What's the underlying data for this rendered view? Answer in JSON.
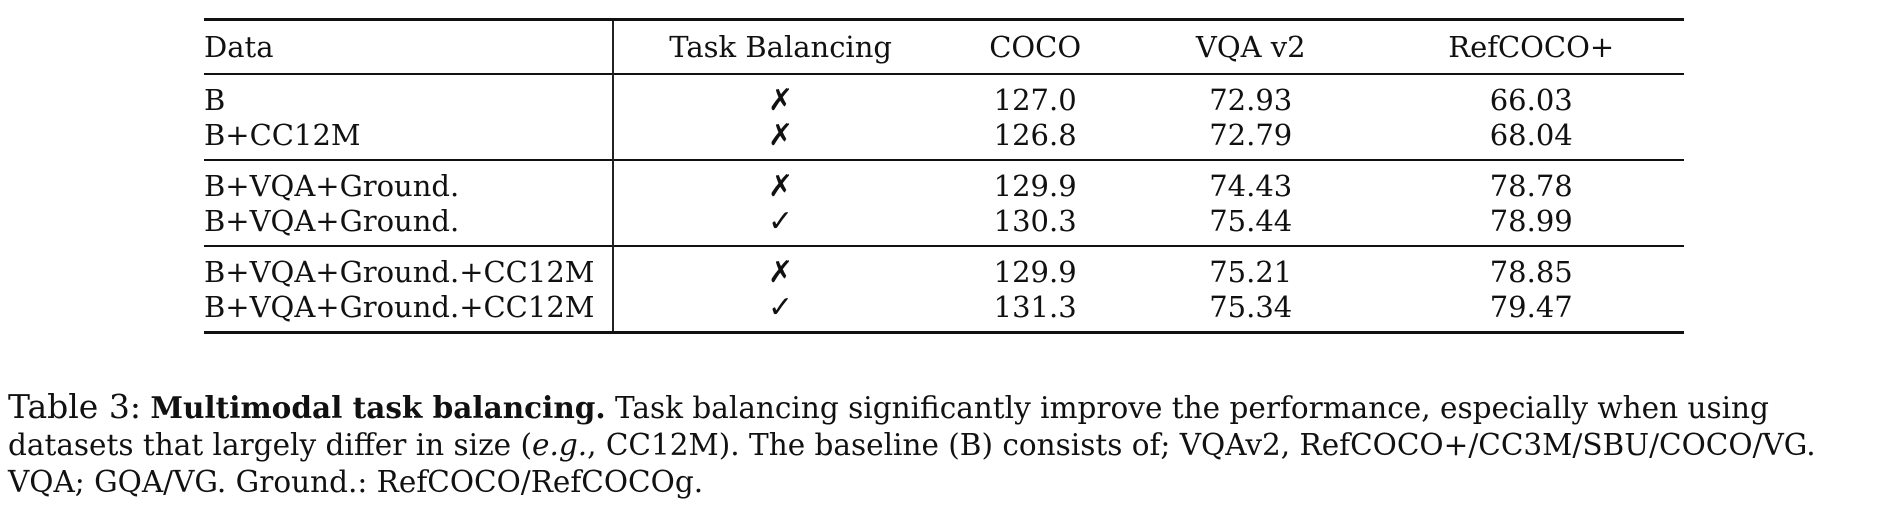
{
  "table": {
    "headers": [
      "Data",
      "Task Balancing",
      "COCO",
      "VQA v2",
      "RefCOCO+"
    ],
    "groups": [
      [
        {
          "data": "B",
          "task": "✗",
          "coco": "127.0",
          "vqa": "72.93",
          "ref": "66.03"
        },
        {
          "data": "B+CC12M",
          "task": "✗",
          "coco": "126.8",
          "vqa": "72.79",
          "ref": "68.04"
        }
      ],
      [
        {
          "data": "B+VQA+Ground.",
          "task": "✗",
          "coco": "129.9",
          "vqa": "74.43",
          "ref": "78.78"
        },
        {
          "data": "B+VQA+Ground.",
          "task": "✓",
          "coco": "130.3",
          "vqa": "75.44",
          "ref": "78.99"
        }
      ],
      [
        {
          "data": "B+VQA+Ground.+CC12M",
          "task": "✗",
          "coco": "129.9",
          "vqa": "75.21",
          "ref": "78.85"
        },
        {
          "data": "B+VQA+Ground.+CC12M",
          "task": "✓",
          "coco": "131.3",
          "vqa": "75.34",
          "ref": "79.47"
        }
      ]
    ]
  },
  "caption": {
    "label": "Table 3:",
    "bold": "Multimodal task balancing.",
    "text1": " Task balancing significantly improve the performance, especially when using datasets that largely differ in size (",
    "italic": "e.g.",
    "text2": ", CC12M). The baseline (B) consists of; VQAv2, RefCOCO+/CC3M/SBU/COCO/VG. VQA; GQA/VG. Ground.: RefCOCO/RefCOCOg."
  }
}
